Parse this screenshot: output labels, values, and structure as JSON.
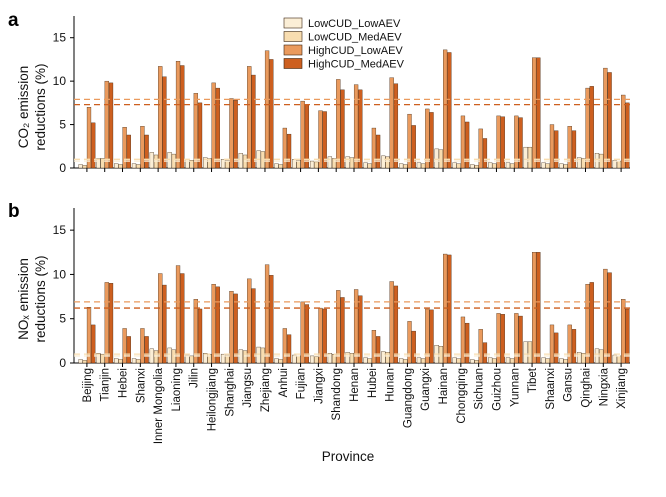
{
  "chart_data": [
    {
      "type": "bar",
      "panel": "a",
      "ylabel_line1": "CO₂ emission",
      "ylabel_line2": "reductions (%)",
      "xlabel": "Province",
      "ylim": [
        0,
        17.5
      ],
      "yticks": [
        0,
        5,
        10,
        15
      ],
      "categories": [
        "Beijing",
        "Tianjin",
        "Hebei",
        "Shanxi",
        "Inner Mongolia",
        "Liaoning",
        "Jilin",
        "Heilongjiang",
        "Shanghai",
        "Jiangsu",
        "Zhejiang",
        "Anhui",
        "Fujian",
        "Jiangxi",
        "Shandong",
        "Henan",
        "Hubei",
        "Hunan",
        "Guangdong",
        "Guangxi",
        "Hainan",
        "Chongqing",
        "Sichuan",
        "Guizhou",
        "Yunnan",
        "Tibet",
        "Shaanxi",
        "Gansu",
        "Qinghai",
        "Ningxia",
        "Xinjiang"
      ],
      "series": [
        {
          "name": "LowCUD_LowAEV",
          "color": "#fbeed6",
          "values": [
            0.4,
            1.1,
            0.5,
            0.5,
            1.8,
            1.8,
            1.0,
            1.2,
            1.0,
            1.7,
            2.0,
            0.5,
            1.0,
            0.8,
            1.3,
            1.3,
            0.6,
            1.4,
            0.5,
            0.6,
            2.2,
            0.6,
            0.4,
            0.6,
            0.6,
            2.4,
            0.6,
            0.5,
            1.2,
            1.7,
            0.9
          ]
        },
        {
          "name": "LowCUD_MedAEV",
          "color": "#f8ddb0",
          "values": [
            0.3,
            1.1,
            0.4,
            0.4,
            1.5,
            1.6,
            0.9,
            1.1,
            0.9,
            1.5,
            1.9,
            0.4,
            0.9,
            0.7,
            1.1,
            1.2,
            0.5,
            1.3,
            0.4,
            0.5,
            2.1,
            0.5,
            0.3,
            0.5,
            0.5,
            2.4,
            0.5,
            0.4,
            1.1,
            1.6,
            0.8
          ]
        },
        {
          "name": "HighCUD_LowAEV",
          "color": "#ea9a5d",
          "values": [
            7.0,
            10.0,
            4.7,
            4.8,
            11.7,
            12.3,
            8.6,
            9.8,
            8.0,
            11.7,
            13.5,
            4.6,
            7.7,
            6.6,
            10.2,
            9.6,
            4.6,
            10.4,
            6.2,
            6.8,
            13.6,
            6.0,
            4.5,
            6.0,
            6.0,
            12.7,
            5.0,
            4.8,
            9.2,
            11.5,
            8.4
          ]
        },
        {
          "name": "HighCUD_MedAEV",
          "color": "#cd5f1f",
          "values": [
            5.2,
            9.8,
            3.8,
            3.8,
            10.5,
            11.8,
            7.5,
            9.2,
            7.8,
            10.7,
            12.5,
            3.9,
            7.3,
            6.5,
            9.0,
            9.0,
            3.8,
            9.7,
            4.9,
            6.4,
            13.3,
            5.3,
            3.4,
            5.9,
            5.8,
            12.7,
            4.3,
            4.3,
            9.4,
            11.0,
            7.5
          ]
        }
      ],
      "reference_lines": [
        {
          "color": "#ea9a5d",
          "value": 7.9
        },
        {
          "color": "#cd5f1f",
          "value": 7.3
        },
        {
          "color": "#f8ddb0",
          "value": 1.0
        },
        {
          "color": "#fbeed6",
          "value": 0.8
        }
      ],
      "grid": false,
      "legend_position": "top-center"
    },
    {
      "type": "bar",
      "panel": "b",
      "ylabel_line1": "NOₓ emission",
      "ylabel_line2": "reductions (%)",
      "xlabel": "Province",
      "ylim": [
        0,
        17.5
      ],
      "yticks": [
        0,
        5,
        10,
        15
      ],
      "categories": [
        "Beijing",
        "Tianjin",
        "Hebei",
        "Shanxi",
        "Inner Mongolia",
        "Liaoning",
        "Jilin",
        "Heilongjiang",
        "Shanghai",
        "Jiangsu",
        "Zhejiang",
        "Anhui",
        "Fujian",
        "Jiangxi",
        "Shandong",
        "Henan",
        "Hubei",
        "Hunan",
        "Guangdong",
        "Guangxi",
        "Hainan",
        "Chongqing",
        "Sichuan",
        "Guizhou",
        "Yunnan",
        "Tibet",
        "Shaanxi",
        "Gansu",
        "Qinghai",
        "Ningxia",
        "Xinjiang"
      ],
      "series": [
        {
          "name": "LowCUD_LowAEV",
          "color": "#fbeed6",
          "values": [
            0.4,
            1.1,
            0.5,
            0.5,
            1.6,
            1.7,
            0.9,
            1.1,
            1.0,
            1.5,
            1.8,
            0.5,
            0.9,
            0.8,
            1.1,
            1.2,
            0.6,
            1.3,
            0.5,
            0.6,
            2.0,
            0.6,
            0.4,
            0.6,
            0.6,
            2.4,
            0.6,
            0.5,
            1.2,
            1.6,
            0.9
          ]
        },
        {
          "name": "LowCUD_MedAEV",
          "color": "#f8ddb0",
          "values": [
            0.3,
            1.0,
            0.4,
            0.4,
            1.4,
            1.5,
            0.8,
            1.0,
            0.9,
            1.4,
            1.7,
            0.4,
            0.8,
            0.7,
            1.0,
            1.1,
            0.5,
            1.2,
            0.4,
            0.5,
            1.9,
            0.5,
            0.3,
            0.5,
            0.5,
            2.4,
            0.5,
            0.4,
            1.1,
            1.5,
            0.8
          ]
        },
        {
          "name": "HighCUD_LowAEV",
          "color": "#ea9a5d",
          "values": [
            6.3,
            9.1,
            3.9,
            3.9,
            10.1,
            11.0,
            7.2,
            8.9,
            8.1,
            9.5,
            11.1,
            3.9,
            6.9,
            6.2,
            8.2,
            8.3,
            3.7,
            9.2,
            4.7,
            6.1,
            12.3,
            5.2,
            3.8,
            5.6,
            5.6,
            12.5,
            4.3,
            4.3,
            8.9,
            10.6,
            7.2
          ]
        },
        {
          "name": "HighCUD_MedAEV",
          "color": "#cd5f1f",
          "values": [
            4.3,
            9.0,
            3.0,
            3.0,
            8.8,
            10.1,
            6.1,
            8.6,
            7.8,
            8.4,
            9.9,
            3.2,
            6.6,
            6.1,
            7.4,
            7.6,
            3.0,
            8.7,
            3.6,
            6.0,
            12.2,
            4.5,
            2.3,
            5.5,
            5.3,
            12.5,
            3.4,
            3.8,
            9.1,
            10.2,
            6.1
          ]
        }
      ],
      "reference_lines": [
        {
          "color": "#ea9a5d",
          "value": 6.9
        },
        {
          "color": "#cd5f1f",
          "value": 6.2
        },
        {
          "color": "#f8ddb0",
          "value": 1.0
        },
        {
          "color": "#fbeed6",
          "value": 0.8
        }
      ],
      "grid": false,
      "legend_position": "none"
    }
  ]
}
